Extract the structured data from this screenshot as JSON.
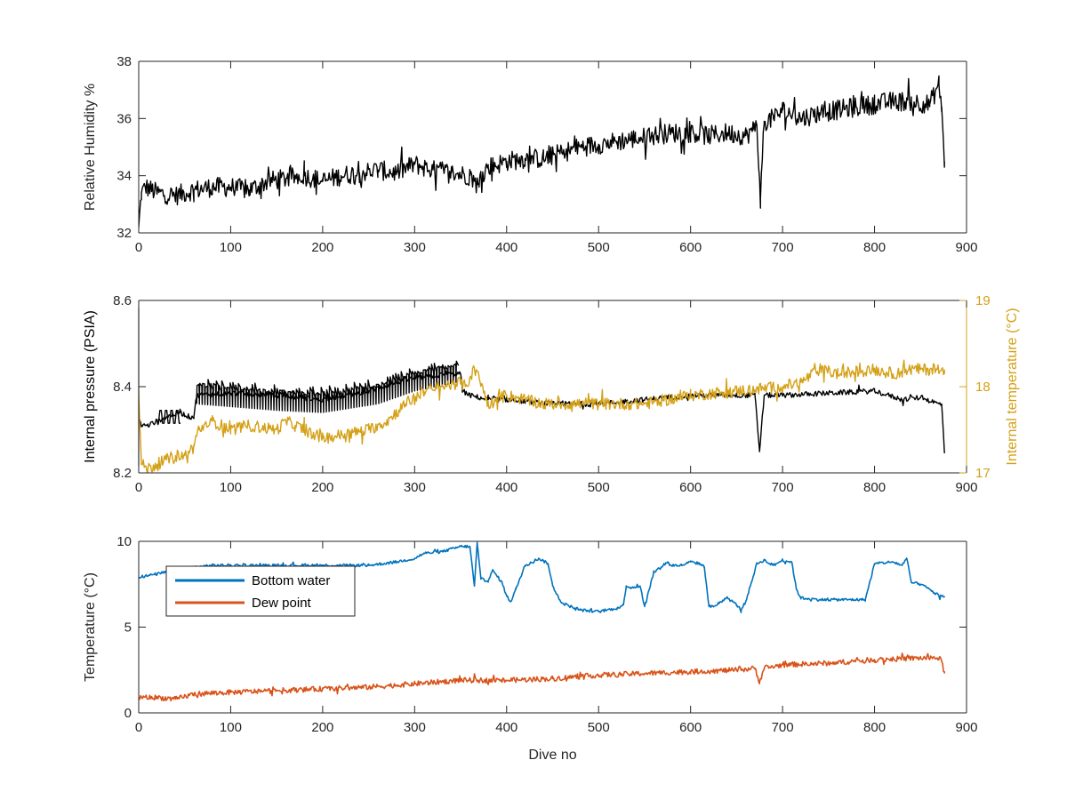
{
  "figure": {
    "background": "#ffffff",
    "axis_color": "#262626"
  },
  "chart_data": [
    {
      "type": "line",
      "title": "",
      "xlabel": "",
      "ylabel": "Relative Humidity %",
      "xlim": [
        0,
        900
      ],
      "ylim": [
        32,
        38
      ],
      "xticks": [
        "0",
        "100",
        "200",
        "300",
        "400",
        "500",
        "600",
        "700",
        "800",
        "900"
      ],
      "yticks": [
        "32",
        "34",
        "36",
        "38"
      ],
      "grid": false,
      "series": [
        {
          "color": "#000000",
          "style": "noisy",
          "noise_amplitude": 0.35,
          "x": [
            0,
            3,
            8,
            20,
            40,
            60,
            80,
            100,
            120,
            140,
            160,
            180,
            200,
            220,
            240,
            260,
            280,
            300,
            320,
            340,
            360,
            370,
            372,
            380,
            400,
            420,
            440,
            460,
            480,
            500,
            520,
            540,
            560,
            580,
            600,
            620,
            640,
            660,
            668,
            672,
            676,
            680,
            690,
            700,
            720,
            740,
            760,
            780,
            800,
            820,
            840,
            860,
            870,
            873,
            876
          ],
          "y": [
            32.2,
            33.4,
            33.6,
            33.4,
            33.3,
            33.5,
            33.6,
            33.6,
            33.5,
            33.8,
            33.9,
            34.0,
            33.8,
            34.0,
            34.1,
            34.2,
            34.1,
            34.4,
            34.2,
            34.1,
            34.0,
            33.6,
            34.1,
            34.3,
            34.5,
            34.6,
            34.6,
            34.8,
            35.0,
            35.1,
            35.2,
            35.3,
            35.4,
            35.5,
            35.5,
            35.4,
            35.5,
            35.4,
            35.6,
            35.8,
            33.2,
            35.9,
            36.0,
            36.3,
            36.0,
            36.2,
            36.3,
            36.4,
            36.5,
            36.6,
            36.6,
            36.5,
            37.2,
            36.4,
            34.5
          ]
        }
      ]
    },
    {
      "type": "line",
      "title": "",
      "xlabel": "",
      "ylabel": "Internal pressure (PSIA)",
      "ylabel_right": "Internal temperature (°C)",
      "xlim": [
        0,
        900
      ],
      "ylim": [
        8.2,
        8.6
      ],
      "ylim_right": [
        17,
        19
      ],
      "xticks": [
        "0",
        "100",
        "200",
        "300",
        "400",
        "500",
        "600",
        "700",
        "800",
        "900"
      ],
      "yticks": [
        "8.2",
        "8.4",
        "8.6"
      ],
      "yticks_right": [
        "17",
        "18",
        "19"
      ],
      "right_axis_color": "#D4A017",
      "grid": false,
      "series": [
        {
          "axis": "left",
          "color": "#000000",
          "style": "noisy",
          "noise_amplitude": 0.006,
          "x": [
            0,
            3,
            10,
            20,
            30,
            45,
            55,
            60,
            63,
            100,
            150,
            200,
            250,
            280,
            300,
            320,
            340,
            350,
            352,
            360,
            380,
            400,
            450,
            500,
            550,
            600,
            650,
            670,
            675,
            680,
            700,
            750,
            800,
            830,
            850,
            870,
            873,
            876
          ],
          "y": [
            8.33,
            8.31,
            8.31,
            8.32,
            8.33,
            8.34,
            8.33,
            8.33,
            8.38,
            8.385,
            8.38,
            8.37,
            8.39,
            8.41,
            8.42,
            8.425,
            8.43,
            8.43,
            8.39,
            8.38,
            8.37,
            8.37,
            8.36,
            8.36,
            8.37,
            8.38,
            8.38,
            8.38,
            8.25,
            8.38,
            8.38,
            8.385,
            8.39,
            8.37,
            8.375,
            8.36,
            8.36,
            8.25
          ]
        },
        {
          "axis": "left",
          "color": "#000000",
          "style": "square",
          "amplitude": 0.03,
          "x": [
            20,
            46
          ],
          "y": [
            8.315,
            8.315
          ]
        },
        {
          "axis": "left",
          "color": "#000000",
          "style": "sawtooth",
          "amplitude": 0.05,
          "x": [
            63,
            150,
            200,
            260,
            300,
            345
          ],
          "y": [
            8.36,
            8.345,
            8.34,
            8.36,
            8.39,
            8.41
          ]
        },
        {
          "axis": "right",
          "color": "#D4A017",
          "style": "noisy",
          "noise_amplitude": 0.07,
          "x": [
            0,
            3,
            10,
            20,
            30,
            40,
            50,
            60,
            65,
            80,
            100,
            120,
            150,
            160,
            170,
            180,
            200,
            250,
            270,
            290,
            310,
            330,
            350,
            355,
            360,
            365,
            370,
            375,
            380,
            400,
            420,
            440,
            460,
            500,
            550,
            600,
            650,
            700,
            720,
            740,
            760,
            800,
            820,
            840,
            860,
            876
          ],
          "y": [
            17.9,
            17.1,
            17.05,
            17.1,
            17.15,
            17.2,
            17.2,
            17.3,
            17.5,
            17.6,
            17.5,
            17.55,
            17.5,
            17.6,
            17.55,
            17.5,
            17.4,
            17.5,
            17.6,
            17.8,
            17.95,
            18.0,
            18.05,
            18.0,
            18.1,
            18.2,
            18.1,
            17.95,
            17.8,
            17.9,
            17.85,
            17.8,
            17.8,
            17.8,
            17.8,
            17.9,
            17.95,
            18.0,
            18.05,
            18.2,
            18.15,
            18.2,
            18.15,
            18.2,
            18.2,
            18.2
          ]
        }
      ]
    },
    {
      "type": "line",
      "title": "",
      "xlabel": "Dive no",
      "ylabel": "Temperature (°C)",
      "xlim": [
        0,
        900
      ],
      "ylim": [
        0,
        10
      ],
      "xticks": [
        "0",
        "100",
        "200",
        "300",
        "400",
        "500",
        "600",
        "700",
        "800",
        "900"
      ],
      "yticks": [
        "0",
        "5",
        "10"
      ],
      "grid": false,
      "legend": {
        "placement": "top-left",
        "entries": [
          "Bottom water",
          "Dew point"
        ]
      },
      "series": [
        {
          "name": "Bottom water",
          "color": "#0072BD",
          "style": "noisy",
          "noise_amplitude": 0.08,
          "x": [
            0,
            20,
            40,
            60,
            80,
            100,
            150,
            200,
            250,
            280,
            300,
            310,
            330,
            350,
            360,
            365,
            368,
            372,
            380,
            385,
            395,
            400,
            405,
            410,
            420,
            435,
            445,
            450,
            460,
            470,
            480,
            500,
            520,
            527,
            530,
            535,
            545,
            550,
            560,
            575,
            578,
            590,
            600,
            610,
            615,
            620,
            625,
            640,
            650,
            655,
            660,
            665,
            672,
            680,
            690,
            700,
            710,
            715,
            720,
            740,
            760,
            780,
            790,
            800,
            820,
            830,
            835,
            840,
            850,
            860,
            870,
            876
          ],
          "y": [
            7.9,
            8.1,
            8.3,
            8.5,
            8.6,
            8.6,
            8.6,
            8.6,
            8.6,
            8.8,
            9.0,
            9.3,
            9.4,
            9.7,
            9.7,
            7.4,
            9.9,
            7.8,
            7.7,
            8.3,
            7.6,
            6.8,
            6.5,
            7.2,
            8.6,
            9.0,
            8.7,
            7.4,
            6.4,
            6.2,
            6.0,
            5.9,
            6.1,
            6.3,
            7.4,
            7.3,
            7.4,
            6.2,
            8.2,
            8.8,
            8.6,
            8.6,
            8.8,
            8.7,
            8.5,
            6.2,
            6.2,
            6.7,
            6.3,
            6.0,
            6.5,
            7.4,
            8.7,
            8.9,
            8.6,
            8.9,
            8.8,
            7.2,
            6.7,
            6.6,
            6.6,
            6.6,
            6.6,
            8.7,
            8.8,
            8.6,
            9.0,
            7.6,
            7.5,
            7.2,
            6.8,
            6.8
          ]
        },
        {
          "name": "Dew point",
          "color": "#D95319",
          "style": "noisy",
          "noise_amplitude": 0.15,
          "x": [
            0,
            20,
            40,
            60,
            100,
            150,
            200,
            250,
            300,
            350,
            400,
            450,
            500,
            550,
            600,
            650,
            670,
            675,
            680,
            700,
            750,
            800,
            850,
            870,
            873,
            876
          ],
          "y": [
            0.9,
            0.9,
            0.8,
            1.1,
            1.2,
            1.3,
            1.4,
            1.5,
            1.7,
            1.9,
            1.9,
            2.0,
            2.2,
            2.3,
            2.4,
            2.5,
            2.6,
            1.8,
            2.6,
            2.8,
            2.9,
            3.1,
            3.2,
            3.2,
            3.0,
            2.3
          ]
        }
      ]
    }
  ]
}
